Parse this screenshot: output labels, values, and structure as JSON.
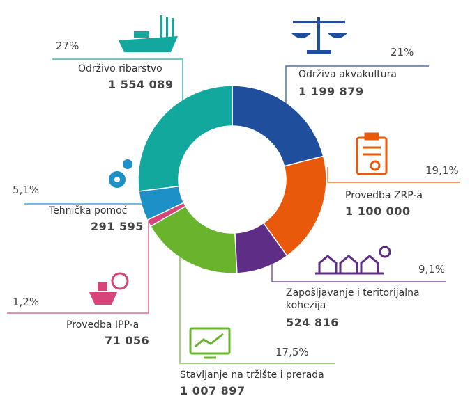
{
  "chart_data": {
    "type": "pie",
    "categories": [
      "Održiva akvakultura",
      "Provedba ZRP-a",
      "Zapošljavanje i teritorijalna kohezija",
      "Stavljanje na tržište i prerada",
      "Provedba IPP-a",
      "Tehnička pomoć",
      "Održivo ribarstvo"
    ],
    "values": [
      21,
      19.1,
      9.1,
      17.5,
      1.2,
      5.1,
      27
    ],
    "value_labels": [
      "21%",
      "19,1%",
      "9,1%",
      "17,5%",
      "1,2%",
      "5,1%",
      "27%"
    ],
    "amounts": [
      "1 199 879",
      "1 100 000",
      "524 816",
      "1 007 897",
      "71 056",
      "291 595",
      "1 554 089"
    ],
    "colors": [
      "#1f4e9c",
      "#e8590c",
      "#5e2d86",
      "#6ab42d",
      "#d6457a",
      "#1e90c8",
      "#13a89e"
    ]
  }
}
